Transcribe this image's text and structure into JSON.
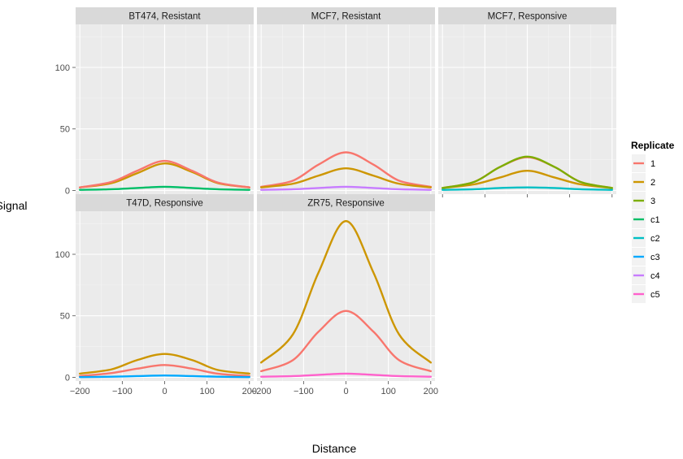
{
  "chart_data": {
    "type": "line",
    "facet_layout": "3 columns x 2 rows, shared axes",
    "xlabel": "Distance",
    "ylabel": "Signal",
    "xlim": [
      -210,
      210
    ],
    "ylim": [
      -3,
      135
    ],
    "x_ticks": [
      -200,
      -100,
      0,
      100,
      200
    ],
    "x_tick_labels": [
      "−200",
      "−100",
      "0",
      "100",
      "200"
    ],
    "y_ticks": [
      0,
      50,
      100
    ],
    "grid": true,
    "legend": {
      "title": "Replicate",
      "placement": "right",
      "entries": [
        {
          "key": "1",
          "color": "#f8766d"
        },
        {
          "key": "2",
          "color": "#cd9600"
        },
        {
          "key": "3",
          "color": "#7cae00"
        },
        {
          "key": "c1",
          "color": "#00be67"
        },
        {
          "key": "c2",
          "color": "#00bfc4"
        },
        {
          "key": "c3",
          "color": "#00a9ff"
        },
        {
          "key": "c4",
          "color": "#c77cff"
        },
        {
          "key": "c5",
          "color": "#ff61cc"
        }
      ]
    },
    "x": [
      -200,
      -125,
      -65,
      0,
      65,
      125,
      200
    ],
    "panels": [
      {
        "title": "BT474, Resistant",
        "series": [
          {
            "replicate": "2",
            "values": [
              2.5,
              6,
              14,
              22,
              15,
              6,
              2.5
            ]
          },
          {
            "replicate": "1",
            "values": [
              2.5,
              7,
              16,
              24,
              16,
              6.5,
              2.5
            ]
          },
          {
            "replicate": "c1",
            "values": [
              0.5,
              1,
              2,
              3,
              2,
              1,
              0.5
            ]
          }
        ]
      },
      {
        "title": "MCF7, Resistant",
        "series": [
          {
            "replicate": "1",
            "values": [
              3,
              8,
              21,
              31,
              21,
              8,
              3
            ]
          },
          {
            "replicate": "2",
            "values": [
              2.5,
              5.5,
              12,
              18,
              12,
              5.5,
              2.5
            ]
          },
          {
            "replicate": "c4",
            "values": [
              0.5,
              1,
              2,
              3,
              2,
              1,
              0.5
            ]
          }
        ]
      },
      {
        "title": "MCF7, Responsive",
        "series": [
          {
            "replicate": "2",
            "values": [
              2,
              5,
              10.5,
              16,
              10.5,
              5,
              2
            ]
          },
          {
            "replicate": "1",
            "values": [
              2,
              7,
              19,
              27,
              19,
              7,
              2
            ]
          },
          {
            "replicate": "3",
            "values": [
              2,
              7,
              19,
              27.5,
              19,
              7,
              2
            ]
          },
          {
            "replicate": "c2",
            "values": [
              0.5,
              1,
              2,
              2.5,
              2,
              1,
              0.5
            ]
          }
        ]
      },
      {
        "title": "T47D, Responsive",
        "series": [
          {
            "replicate": "1",
            "values": [
              1,
              3.5,
              7,
              10,
              7,
              3,
              1
            ]
          },
          {
            "replicate": "2",
            "values": [
              3,
              6.5,
              14,
              19,
              14,
              6,
              3
            ]
          },
          {
            "replicate": "c3",
            "values": [
              0.2,
              0.5,
              1,
              1.5,
              1,
              0.5,
              0.2
            ]
          }
        ]
      },
      {
        "title": "ZR75, Responsive",
        "series": [
          {
            "replicate": "2",
            "values": [
              12,
              35,
              85,
              127,
              85,
              35,
              12
            ]
          },
          {
            "replicate": "1",
            "values": [
              5,
              14,
              37,
              54,
              37,
              14,
              5
            ]
          },
          {
            "replicate": "c5",
            "values": [
              0.5,
              1,
              2,
              3,
              2,
              1,
              0.5
            ]
          }
        ]
      }
    ]
  }
}
